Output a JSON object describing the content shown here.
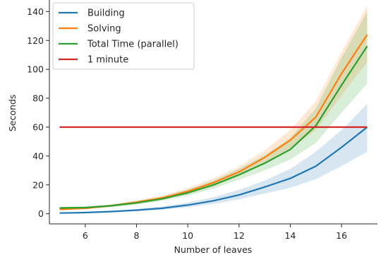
{
  "chart_data": {
    "type": "line",
    "xlabel": "Number of leaves",
    "ylabel": "Seconds",
    "xlim": [
      4.6,
      17.4
    ],
    "ylim": [
      -7,
      148
    ],
    "x_ticks": [
      6,
      8,
      10,
      12,
      14,
      16
    ],
    "y_ticks": [
      0,
      20,
      40,
      60,
      80,
      100,
      120,
      140
    ],
    "grid": false,
    "legend_position": "top-left",
    "x": [
      5,
      6,
      7,
      8,
      9,
      10,
      11,
      12,
      13,
      14,
      15,
      16,
      17
    ],
    "series": [
      {
        "name": "Building",
        "color": "#1f77b4",
        "values": [
          0.5,
          0.8,
          1.5,
          2.5,
          3.8,
          6,
          9,
          13,
          18.5,
          24.5,
          33,
          46,
          60
        ],
        "lower": [
          0.3,
          0.5,
          1.0,
          1.8,
          2.8,
          4.5,
          6.8,
          10,
          14,
          18,
          24,
          33,
          43
        ],
        "upper": [
          0.8,
          1.2,
          2.0,
          3.3,
          5.0,
          7.8,
          11.5,
          16.5,
          23,
          31,
          43,
          58,
          76
        ]
      },
      {
        "name": "Solving",
        "color": "#ff7f0e",
        "values": [
          3,
          3.8,
          5.5,
          8,
          11,
          15.5,
          21.5,
          29,
          39,
          51,
          67,
          97,
          124
        ],
        "lower": [
          2.4,
          3.1,
          4.6,
          6.8,
          9.5,
          13.5,
          19,
          26,
          35,
          45,
          58,
          82,
          105
        ],
        "upper": [
          3.6,
          4.5,
          6.4,
          9.3,
          12.6,
          17.8,
          24.5,
          32.5,
          44,
          58,
          78,
          112,
          144
        ]
      },
      {
        "name": "Total Time (parallel)",
        "color": "#2ca02c",
        "values": [
          4,
          4.3,
          5.5,
          7.5,
          10.3,
          14.5,
          20,
          27,
          35,
          44.5,
          61,
          89,
          116
        ],
        "lower": [
          3.3,
          3.6,
          4.7,
          6.4,
          9,
          12.5,
          17.5,
          23.5,
          30,
          37.5,
          49,
          70,
          90
        ],
        "upper": [
          4.7,
          5.0,
          6.4,
          8.7,
          11.8,
          16.8,
          23,
          31,
          40.5,
          52.5,
          73,
          108,
          140
        ]
      },
      {
        "name": "1 minute",
        "color": "#d62728",
        "values": [
          60,
          60,
          60,
          60,
          60,
          60,
          60,
          60,
          60,
          60,
          60,
          60,
          60
        ]
      }
    ]
  }
}
